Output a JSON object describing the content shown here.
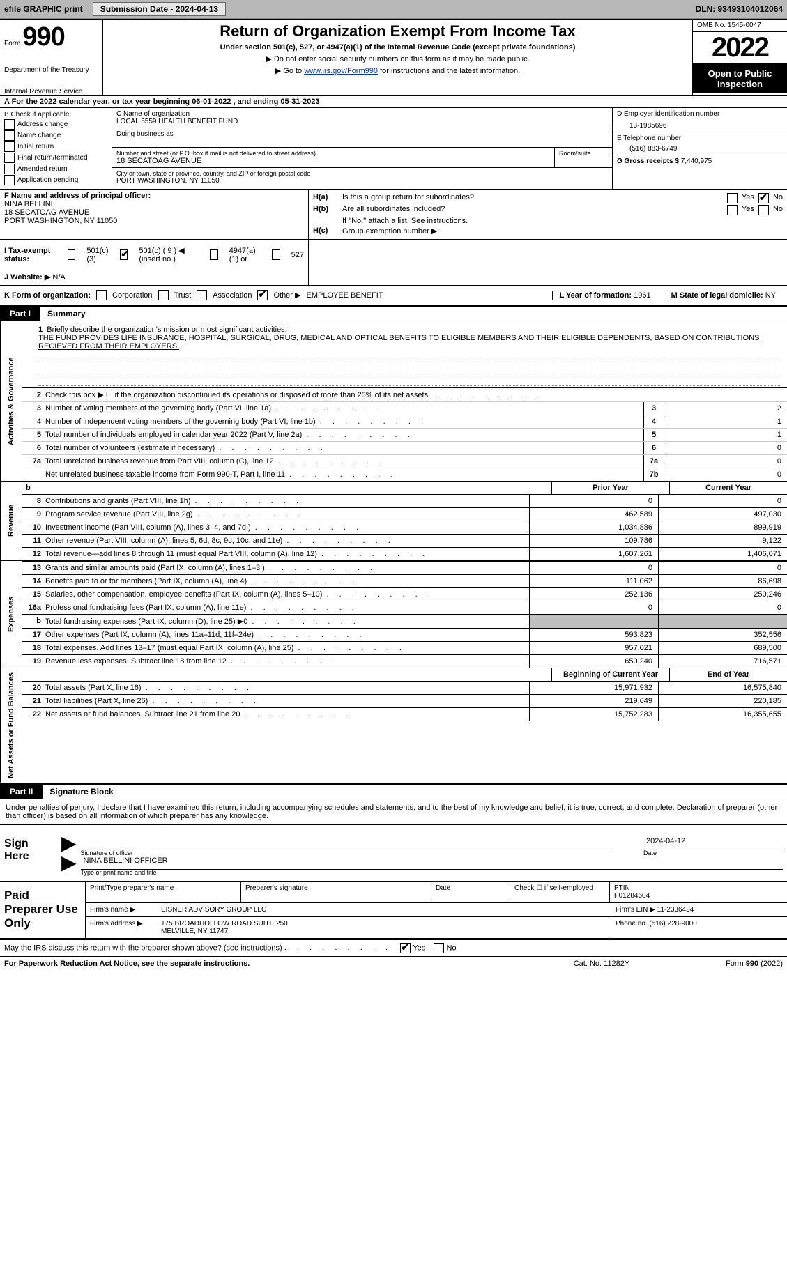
{
  "top_bar": {
    "efile_label": "efile GRAPHIC print",
    "submission_label": "Submission Date - 2024-04-13",
    "dln_label": "DLN: 93493104012064"
  },
  "header": {
    "form_word": "Form",
    "form_number": "990",
    "dept": "Department of the Treasury",
    "irs": "Internal Revenue Service",
    "title": "Return of Organization Exempt From Income Tax",
    "subtitle": "Under section 501(c), 527, or 4947(a)(1) of the Internal Revenue Code (except private foundations)",
    "note1": "▶ Do not enter social security numbers on this form as it may be made public.",
    "note2_pre": "▶ Go to ",
    "note2_link": "www.irs.gov/Form990",
    "note2_post": " for instructions and the latest information.",
    "omb": "OMB No. 1545-0047",
    "year": "2022",
    "open_pub": "Open to Public Inspection"
  },
  "row_a": {
    "text": "A For the 2022 calendar year, or tax year beginning 06-01-2022   , and ending 05-31-2023"
  },
  "col_b": {
    "heading": "B Check if applicable:",
    "items": [
      "Address change",
      "Name change",
      "Initial return",
      "Final return/terminated",
      "Amended return",
      "Application pending"
    ]
  },
  "col_c": {
    "name_label": "C Name of organization",
    "name_value": "LOCAL 6559 HEALTH BENEFIT FUND",
    "dba_label": "Doing business as",
    "street_label": "Number and street (or P.O. box if mail is not delivered to street address)",
    "street_value": "18 SECATOAG AVENUE",
    "room_label": "Room/suite",
    "city_label": "City or town, state or province, country, and ZIP or foreign postal code",
    "city_value": "PORT WASHINGTON, NY  11050"
  },
  "col_d": {
    "ein_label": "D Employer identification number",
    "ein_value": "13-1985696",
    "phone_label": "E Telephone number",
    "phone_value": "(516) 883-6749",
    "gross_label": "G Gross receipts $",
    "gross_value": "7,440,975"
  },
  "col_f": {
    "label": "F  Name and address of principal officer:",
    "name": "NINA BELLINI",
    "addr1": "18 SECATOAG AVENUE",
    "addr2": "PORT WASHINGTON, NY  11050"
  },
  "col_h": {
    "ha_label": "H(a)",
    "ha_text": "Is this a group return for subordinates?",
    "hb_label": "H(b)",
    "hb_text": "Are all subordinates included?",
    "hb_note": "If \"No,\" attach a list. See instructions.",
    "hc_label": "H(c)",
    "hc_text": "Group exemption number ▶",
    "yes": "Yes",
    "no": "No"
  },
  "row_i": {
    "label": "I  Tax-exempt status:",
    "opt1": "501(c)(3)",
    "opt2": "501(c) ( 9 ) ◀ (insert no.)",
    "opt3": "4947(a)(1) or",
    "opt4": "527"
  },
  "row_j": {
    "label": "J  Website: ▶",
    "value": "N/A"
  },
  "row_k": {
    "label": "K Form of organization:",
    "opts": [
      "Corporation",
      "Trust",
      "Association",
      "Other ▶"
    ],
    "other_val": "EMPLOYEE BENEFIT",
    "l_label": "L Year of formation:",
    "l_val": "1961",
    "m_label": "M State of legal domicile:",
    "m_val": "NY"
  },
  "part1": {
    "label": "Part I",
    "title": "Summary"
  },
  "mission": {
    "line1_label": "1",
    "line1_text": "Briefly describe the organization's mission or most significant activities:",
    "line1_value": "THE FUND PROVIDES LIFE INSURANCE, HOSPITAL, SURGICAL, DRUG, MEDICAL AND OPTICAL BENEFITS TO ELIGIBLE MEMBERS AND THEIR ELIGIBLE DEPENDENTS, BASED ON CONTRIBUTIONS RECIEVED FROM THEIR EMPLOYERS."
  },
  "gov_rows": [
    {
      "n": "2",
      "d": "Check this box ▶ ☐ if the organization discontinued its operations or disposed of more than 25% of its net assets.",
      "box": "",
      "val": ""
    },
    {
      "n": "3",
      "d": "Number of voting members of the governing body (Part VI, line 1a)",
      "box": "3",
      "val": "2"
    },
    {
      "n": "4",
      "d": "Number of independent voting members of the governing body (Part VI, line 1b)",
      "box": "4",
      "val": "1"
    },
    {
      "n": "5",
      "d": "Total number of individuals employed in calendar year 2022 (Part V, line 2a)",
      "box": "5",
      "val": "1"
    },
    {
      "n": "6",
      "d": "Total number of volunteers (estimate if necessary)",
      "box": "6",
      "val": "0"
    },
    {
      "n": "7a",
      "d": "Total unrelated business revenue from Part VIII, column (C), line 12",
      "box": "7a",
      "val": "0"
    },
    {
      "n": "",
      "d": "Net unrelated business taxable income from Form 990-T, Part I, line 11",
      "box": "7b",
      "val": "0"
    }
  ],
  "rev_headers": {
    "prior": "Prior Year",
    "current": "Current Year"
  },
  "vtabs": {
    "activities": "Activities & Governance",
    "revenue": "Revenue",
    "expenses": "Expenses",
    "net": "Net Assets or Fund Balances"
  },
  "rev_rows": [
    {
      "n": "8",
      "d": "Contributions and grants (Part VIII, line 1h)",
      "c1": "0",
      "c2": "0"
    },
    {
      "n": "9",
      "d": "Program service revenue (Part VIII, line 2g)",
      "c1": "462,589",
      "c2": "497,030"
    },
    {
      "n": "10",
      "d": "Investment income (Part VIII, column (A), lines 3, 4, and 7d )",
      "c1": "1,034,886",
      "c2": "899,919"
    },
    {
      "n": "11",
      "d": "Other revenue (Part VIII, column (A), lines 5, 6d, 8c, 9c, 10c, and 11e)",
      "c1": "109,786",
      "c2": "9,122"
    },
    {
      "n": "12",
      "d": "Total revenue—add lines 8 through 11 (must equal Part VIII, column (A), line 12)",
      "c1": "1,607,261",
      "c2": "1,406,071"
    }
  ],
  "exp_rows": [
    {
      "n": "13",
      "d": "Grants and similar amounts paid (Part IX, column (A), lines 1–3 )",
      "c1": "0",
      "c2": "0"
    },
    {
      "n": "14",
      "d": "Benefits paid to or for members (Part IX, column (A), line 4)",
      "c1": "111,062",
      "c2": "86,698"
    },
    {
      "n": "15",
      "d": "Salaries, other compensation, employee benefits (Part IX, column (A), lines 5–10)",
      "c1": "252,136",
      "c2": "250,246"
    },
    {
      "n": "16a",
      "d": "Professional fundraising fees (Part IX, column (A), line 11e)",
      "c1": "0",
      "c2": "0"
    },
    {
      "n": "b",
      "d": "Total fundraising expenses (Part IX, column (D), line 25) ▶0",
      "c1": "shade",
      "c2": "shade"
    },
    {
      "n": "17",
      "d": "Other expenses (Part IX, column (A), lines 11a–11d, 11f–24e)",
      "c1": "593,823",
      "c2": "352,556"
    },
    {
      "n": "18",
      "d": "Total expenses. Add lines 13–17 (must equal Part IX, column (A), line 25)",
      "c1": "957,021",
      "c2": "689,500"
    },
    {
      "n": "19",
      "d": "Revenue less expenses. Subtract line 18 from line 12",
      "c1": "650,240",
      "c2": "716,571"
    }
  ],
  "net_headers": {
    "begin": "Beginning of Current Year",
    "end": "End of Year"
  },
  "net_rows": [
    {
      "n": "20",
      "d": "Total assets (Part X, line 16)",
      "c1": "15,971,932",
      "c2": "16,575,840"
    },
    {
      "n": "21",
      "d": "Total liabilities (Part X, line 26)",
      "c1": "219,649",
      "c2": "220,185"
    },
    {
      "n": "22",
      "d": "Net assets or fund balances. Subtract line 21 from line 20",
      "c1": "15,752,283",
      "c2": "16,355,655"
    }
  ],
  "part2": {
    "label": "Part II",
    "title": "Signature Block"
  },
  "sig_text": "Under penalties of perjury, I declare that I have examined this return, including accompanying schedules and statements, and to the best of my knowledge and belief, it is true, correct, and complete. Declaration of preparer (other than officer) is based on all information of which preparer has any knowledge.",
  "sign": {
    "here": "Sign Here",
    "sig_label": "Signature of officer",
    "date_val": "2024-04-12",
    "date_label": "Date",
    "name_val": "NINA BELLINI  OFFICER",
    "name_label": "Type or print name and title"
  },
  "paid": {
    "label": "Paid Preparer Use Only",
    "col_name": "Print/Type preparer's name",
    "col_sig": "Preparer's signature",
    "col_date": "Date",
    "col_self": "Check ☐ if self-employed",
    "ptin_label": "PTIN",
    "ptin_val": "P01284604",
    "firm_name_label": "Firm's name    ▶",
    "firm_name": "EISNER ADVISORY GROUP LLC",
    "firm_ein_label": "Firm's EIN ▶",
    "firm_ein": "11-2336434",
    "firm_addr_label": "Firm's address ▶",
    "firm_addr1": "175 BROADHOLLOW ROAD SUITE 250",
    "firm_addr2": "MELVILLE, NY  11747",
    "phone_label": "Phone no.",
    "phone": "(516) 228-9000"
  },
  "disclose": {
    "text": "May the IRS discuss this return with the preparer shown above? (see instructions)",
    "yes": "Yes",
    "no": "No"
  },
  "footer": {
    "left": "For Paperwork Reduction Act Notice, see the separate instructions.",
    "mid": "Cat. No. 11282Y",
    "right": "Form 990 (2022)"
  }
}
